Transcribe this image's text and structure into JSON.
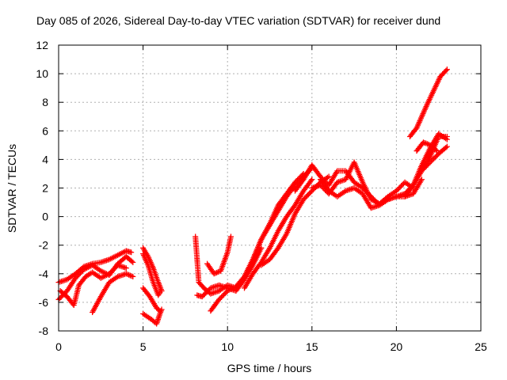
{
  "chart_data": {
    "type": "scatter",
    "title": "Day 085 of 2026, Sidereal Day-to-day VTEC variation (SDTVAR) for receiver dund",
    "xlabel": "GPS time / hours",
    "ylabel": "SDTVAR / TECUs",
    "xlim": [
      0,
      25
    ],
    "ylim": [
      -8,
      12
    ],
    "xticks": [
      0,
      5,
      10,
      15,
      20,
      25
    ],
    "yticks": [
      -8,
      -6,
      -4,
      -2,
      0,
      2,
      4,
      6,
      8,
      10,
      12
    ],
    "grid": true,
    "legend": "none",
    "marker": "+",
    "color": "#ff0000",
    "series": [
      {
        "x": [
          0.0,
          0.5,
          1.0,
          1.5,
          2.0,
          2.5,
          3.0,
          3.5,
          4.0,
          4.3
        ],
        "y": [
          -4.6,
          -4.4,
          -4.0,
          -3.5,
          -3.3,
          -3.2,
          -3.0,
          -2.7,
          -2.4,
          -2.5
        ]
      },
      {
        "x": [
          0.0,
          0.5,
          1.0,
          1.5,
          2.0,
          2.5,
          3.0,
          3.5,
          4.0,
          4.4
        ],
        "y": [
          -5.8,
          -5.2,
          -4.3,
          -3.7,
          -3.4,
          -3.8,
          -4.1,
          -3.3,
          -2.8,
          -3.2
        ]
      },
      {
        "x": [
          0.1,
          0.5,
          0.9,
          1.2,
          1.6,
          2.0,
          2.5,
          3.0,
          3.5,
          4.0
        ],
        "y": [
          -5.2,
          -5.6,
          -6.2,
          -4.8,
          -4.2,
          -3.9,
          -4.3,
          -4.0,
          -3.4,
          -3.6
        ]
      },
      {
        "x": [
          2.0,
          2.5,
          3.0,
          3.5,
          4.0,
          4.4
        ],
        "y": [
          -6.7,
          -5.6,
          -4.6,
          -4.2,
          -4.0,
          -4.2
        ]
      },
      {
        "x": [
          5.0,
          5.3,
          5.6,
          5.9,
          6.1
        ],
        "y": [
          -2.2,
          -2.8,
          -3.6,
          -4.6,
          -5.2
        ]
      },
      {
        "x": [
          5.0,
          5.3,
          5.6,
          5.9,
          6.0
        ],
        "y": [
          -2.6,
          -3.4,
          -4.6,
          -5.5,
          -5.3
        ]
      },
      {
        "x": [
          5.0,
          5.4,
          5.8,
          6.0
        ],
        "y": [
          -5.0,
          -5.6,
          -6.4,
          -6.6
        ]
      },
      {
        "x": [
          5.0,
          5.5,
          5.8,
          6.0,
          6.1
        ],
        "y": [
          -6.8,
          -7.2,
          -7.5,
          -6.8,
          -6.5
        ]
      },
      {
        "x": [
          8.2,
          8.5,
          9.0,
          9.5,
          10.0,
          10.5,
          11.0,
          11.5,
          12.0
        ],
        "y": [
          -5.5,
          -5.6,
          -5.0,
          -4.8,
          -5.0,
          -5.2,
          -4.4,
          -3.4,
          -2.2
        ]
      },
      {
        "x": [
          8.1,
          8.3,
          8.6,
          9.0,
          9.5,
          10.0,
          10.5,
          11.0,
          11.5,
          12.0,
          12.5,
          13.0,
          13.5,
          14.0,
          14.5
        ],
        "y": [
          -1.4,
          -4.6,
          -5.0,
          -5.4,
          -5.2,
          -4.8,
          -5.0,
          -4.2,
          -3.0,
          -1.6,
          -0.5,
          0.8,
          1.6,
          2.4,
          3.0
        ]
      },
      {
        "x": [
          9.0,
          9.5,
          10.0,
          10.5,
          11.0,
          11.5,
          12.0,
          12.5,
          13.0,
          13.5,
          14.0,
          14.5,
          15.0
        ],
        "y": [
          -6.6,
          -5.8,
          -5.2,
          -4.9,
          -4.2,
          -3.0,
          -1.6,
          -0.6,
          0.4,
          1.4,
          2.2,
          2.8,
          3.4
        ]
      },
      {
        "x": [
          8.8,
          9.2,
          9.6,
          10.0,
          10.2
        ],
        "y": [
          -3.3,
          -4.0,
          -3.8,
          -2.5,
          -1.4
        ]
      },
      {
        "x": [
          11.0,
          11.5,
          12.0,
          12.5,
          13.0,
          13.5,
          14.0,
          14.5,
          15.0
        ],
        "y": [
          -5.0,
          -4.0,
          -3.2,
          -2.2,
          -1.0,
          0.0,
          0.8,
          1.8,
          2.6
        ]
      },
      {
        "x": [
          12.0,
          12.5,
          13.0,
          13.5,
          14.0,
          14.5,
          15.0,
          15.5,
          16.0
        ],
        "y": [
          -3.4,
          -3.0,
          -2.2,
          -1.2,
          0.2,
          1.2,
          1.8,
          2.4,
          2.8
        ]
      },
      {
        "x": [
          14.0,
          14.5,
          15.0,
          15.5,
          16.0,
          16.5,
          17.0,
          17.5,
          18.0,
          18.5,
          19.0,
          19.5,
          20.0,
          20.5,
          21.0,
          21.5,
          22.0,
          22.5,
          23.0
        ],
        "y": [
          1.8,
          2.6,
          3.6,
          2.8,
          2.2,
          3.2,
          3.2,
          2.4,
          2.0,
          1.4,
          0.8,
          1.2,
          1.4,
          1.6,
          2.2,
          3.2,
          4.2,
          5.6,
          5.6
        ]
      },
      {
        "x": [
          15.0,
          15.5,
          16.0,
          16.5,
          17.0,
          17.5,
          18.0,
          18.5,
          19.0,
          19.5,
          20.0,
          20.5,
          21.0
        ],
        "y": [
          2.0,
          2.2,
          1.6,
          2.4,
          2.6,
          3.8,
          2.4,
          1.2,
          0.9,
          1.4,
          1.8,
          2.4,
          2.0
        ]
      },
      {
        "x": [
          15.5,
          16.0,
          16.5,
          17.0,
          17.5,
          18.0,
          18.5,
          19.0,
          19.5,
          20.0,
          20.5,
          21.0,
          21.5
        ],
        "y": [
          2.6,
          1.8,
          1.4,
          1.8,
          2.0,
          1.6,
          0.6,
          0.8,
          1.2,
          1.4,
          1.4,
          1.6,
          2.6
        ]
      },
      {
        "x": [
          20.5,
          21.0,
          21.5,
          22.0,
          22.5,
          23.0
        ],
        "y": [
          1.4,
          2.2,
          3.6,
          4.8,
          5.8,
          5.4
        ]
      },
      {
        "x": [
          21.5,
          22.0,
          22.5,
          23.0
        ],
        "y": [
          3.2,
          3.8,
          4.4,
          4.9
        ]
      },
      {
        "x": [
          20.8,
          21.2,
          21.5,
          21.8,
          22.2,
          22.6,
          23.0
        ],
        "y": [
          5.6,
          6.2,
          7.0,
          7.8,
          8.8,
          9.8,
          10.3
        ]
      },
      {
        "x": [
          21.2,
          21.6,
          22.0,
          22.4
        ],
        "y": [
          4.6,
          5.2,
          5.0,
          4.6
        ]
      }
    ]
  }
}
